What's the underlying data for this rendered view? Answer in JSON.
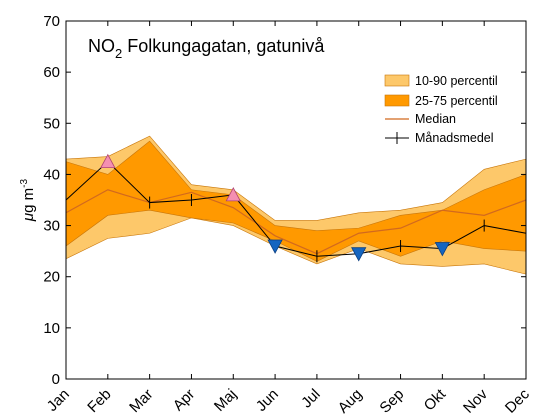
{
  "chart_data": {
    "type": "area",
    "title_main": "NO",
    "title_sub": "2",
    "title_rest": " Folkungagatan, gatunivå",
    "ylabel_mu": "μ",
    "ylabel_g": "g m",
    "ylabel_exp": "-3",
    "ylim": [
      0,
      70
    ],
    "yticks": [
      "0",
      "10",
      "20",
      "30",
      "40",
      "50",
      "60",
      "70"
    ],
    "ytick_values": [
      0,
      10,
      20,
      30,
      40,
      50,
      60,
      70
    ],
    "categories": [
      "Jan",
      "Feb",
      "Mar",
      "Apr",
      "Maj",
      "Jun",
      "Jul",
      "Aug",
      "Sep",
      "Okt",
      "Nov",
      "Dec"
    ],
    "grid": false,
    "legend_position": "top-right",
    "legend": {
      "p10_90": "10-90 percentil",
      "p25_75": "25-75 percentil",
      "median": "Median",
      "monthly": "Månadsmedel"
    },
    "series": [
      {
        "name": "10-90 percentil",
        "lower": [
          23.5,
          27.5,
          28.5,
          31.5,
          30,
          26,
          22.5,
          25.5,
          22.5,
          22,
          22.5,
          20.5
        ],
        "upper": [
          43,
          43.5,
          47.5,
          38,
          37,
          31,
          31,
          32.5,
          33,
          34.5,
          41,
          43
        ]
      },
      {
        "name": "25-75 percentil",
        "lower": [
          26,
          32,
          33,
          31.5,
          30.5,
          27,
          23,
          27,
          24,
          27,
          25.5,
          25
        ],
        "upper": [
          42.5,
          40,
          46.5,
          37,
          36,
          30,
          29,
          29.5,
          32,
          33,
          37,
          40
        ]
      },
      {
        "name": "Median",
        "values": [
          32.5,
          37,
          34.5,
          36.5,
          33.5,
          28,
          24.5,
          28.5,
          29.5,
          33,
          32,
          35
        ]
      },
      {
        "name": "Månadsmedel",
        "values": [
          35,
          42.5,
          34.5,
          35,
          36,
          26,
          24,
          24.5,
          26,
          25.5,
          30,
          28.5
        ]
      }
    ],
    "markers": {
      "up_triangle_months": [
        1,
        4
      ],
      "down_triangle_months": [
        5,
        7,
        9
      ]
    },
    "colors": {
      "p10_90": "#FDC86A",
      "p25_75": "#FF9900",
      "median": "#D2691E",
      "monthly": "#000000",
      "band_edge": "#C8760A",
      "up_triangle": "#F48FB1",
      "down_triangle": "#1565C0"
    }
  }
}
